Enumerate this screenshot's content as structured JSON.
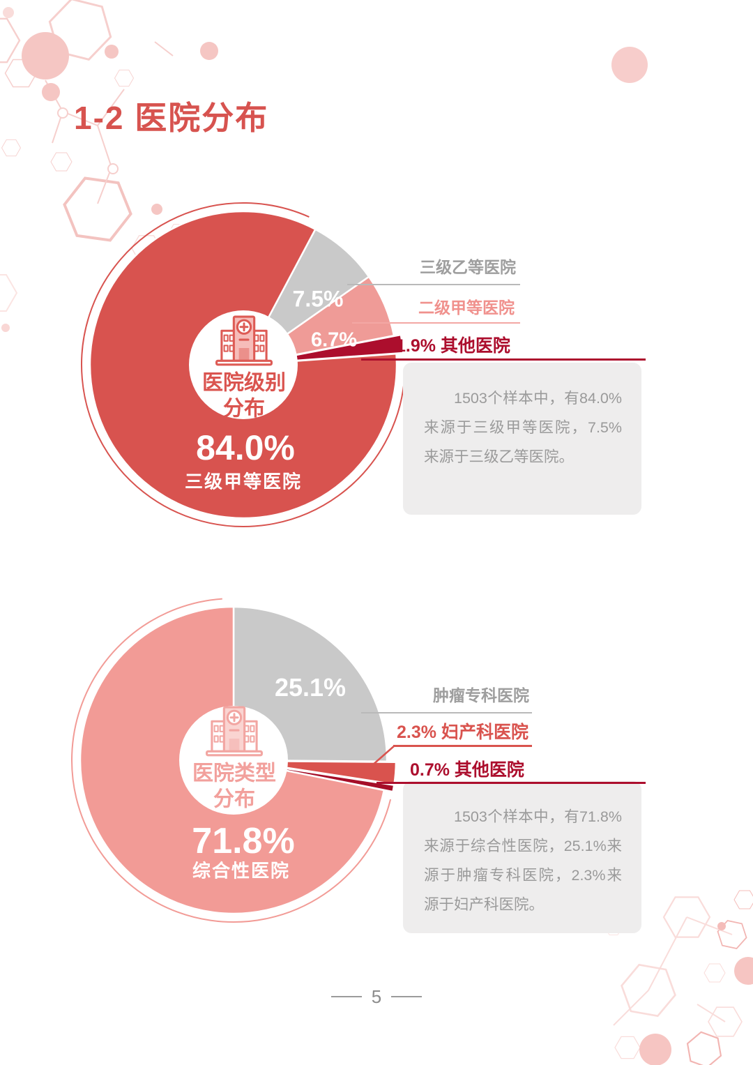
{
  "page": {
    "title": "1-2 医院分布",
    "page_number": "5"
  },
  "palette": {
    "accent_red": "#D7534F",
    "main_red_slice": "#D8534F",
    "soft_pink_slice": "#F29B96",
    "light_pink_slice": "#EF9B97",
    "dark_red_slice": "#AC0E2D",
    "crimson_slice": "#A50E28",
    "gray_slice": "#C9C9C9",
    "label_gray": "#9E9E9E",
    "note_background": "#EEEDED",
    "note_text": "#9A9A9A",
    "page_number_gray": "#8C8C8C"
  },
  "chart_data": [
    {
      "type": "pie",
      "title": "医院级别分布",
      "center_icon": "hospital-icon",
      "center_label_lines": [
        "医院级别",
        "分布"
      ],
      "start_angle": 28,
      "slices": [
        {
          "label": "三级乙等医院",
          "value": 7.5,
          "pct_label": "7.5%",
          "color": "#C9C9C9",
          "explode": 0
        },
        {
          "label": "二级甲等医院",
          "value": 6.7,
          "pct_label": "6.7%",
          "color": "#EF9B97",
          "explode": 0
        },
        {
          "label": "其他医院",
          "value": 1.9,
          "pct_label": "1.9%",
          "color": "#AC0E2D",
          "explode": 10
        },
        {
          "label": "三级甲等医院",
          "value": 84.0,
          "pct_label": "84.0%",
          "color": "#D8534F",
          "explode": 0
        }
      ],
      "side_labels": [
        "三级乙等医院",
        "二级甲等医院",
        "1.9% 其他医院"
      ],
      "ring": {
        "from": 96,
        "to": 384,
        "color": "#D8534F"
      },
      "note": "1503个样本中，有84.0%来源于三级甲等医院，7.5%来源于三级乙等医院。"
    },
    {
      "type": "pie",
      "title": "医院类型分布",
      "center_icon": "hospital-icon",
      "center_label_lines": [
        "医院类型",
        "分布"
      ],
      "start_angle": 0,
      "slices": [
        {
          "label": "肿瘤专科医院",
          "value": 25.1,
          "pct_label": "25.1%",
          "color": "#C9C9C9",
          "explode": 0
        },
        {
          "label": "妇产科医院",
          "value": 2.3,
          "pct_label": "2.3%",
          "color": "#D9534E",
          "explode": 13
        },
        {
          "label": "其他医院",
          "value": 0.7,
          "pct_label": "0.7%",
          "color": "#A50E28",
          "explode": 13
        },
        {
          "label": "综合性医院",
          "value": 71.8,
          "pct_label": "71.8%",
          "color": "#F29B96",
          "explode": 0
        }
      ],
      "side_labels": [
        "肿瘤专科医院",
        "2.3% 妇产科医院",
        "0.7% 其他医院"
      ],
      "ring": {
        "from": 104,
        "to": 356,
        "color": "#F29B96"
      },
      "note": "1503个样本中，有71.8%来源于综合性医院，25.1%来源于肿瘤专科医院，2.3%来源于妇产科医院。"
    }
  ]
}
